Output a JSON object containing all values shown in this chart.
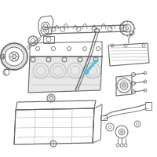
{
  "bg_color": "#ffffff",
  "line_color": "#666666",
  "highlight_color": "#5bbdd6",
  "light_gray": "#e8e8e8",
  "mid_gray": "#aaaaaa",
  "dark_gray": "#555555",
  "figsize": [
    2.0,
    2.0
  ],
  "dpi": 100
}
